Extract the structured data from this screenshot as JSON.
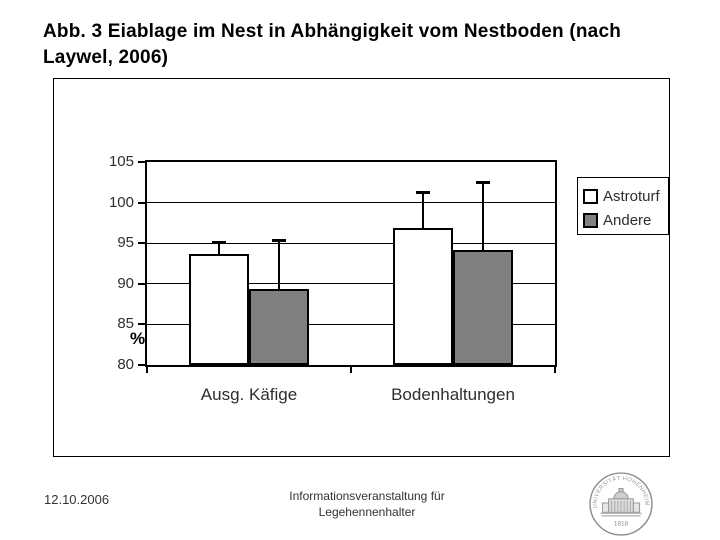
{
  "slide": {
    "title": "Abb. 3 Eiablage im Nest in Abhängigkeit vom Nestboden (nach Laywel, 2006)",
    "footer": {
      "date": "12.10.2006",
      "event_line1": "Informationsveranstaltung für",
      "event_line2": "Legehennenhalter"
    },
    "logo": {
      "seal_text": "UNIVERSITÄT HOHENHEIM",
      "year": "1818"
    }
  },
  "chart_data": {
    "type": "bar",
    "title": "",
    "xlabel": "",
    "ylabel": "%",
    "categories": [
      "Ausg. Käfige",
      "Bodenhaltungen"
    ],
    "series": [
      {
        "name": "Astroturf",
        "color": "#ffffff",
        "values": [
          93.7,
          96.9
        ],
        "error_tops": [
          95.2,
          101.3
        ]
      },
      {
        "name": "Andere",
        "color": "#808080",
        "values": [
          89.3,
          94.2
        ],
        "error_tops": [
          95.4,
          102.5
        ]
      }
    ],
    "ylim": [
      80,
      105
    ],
    "yticks": [
      80,
      85,
      90,
      95,
      100,
      105
    ],
    "grid": true,
    "legend_position": "right",
    "error_bars": true
  }
}
